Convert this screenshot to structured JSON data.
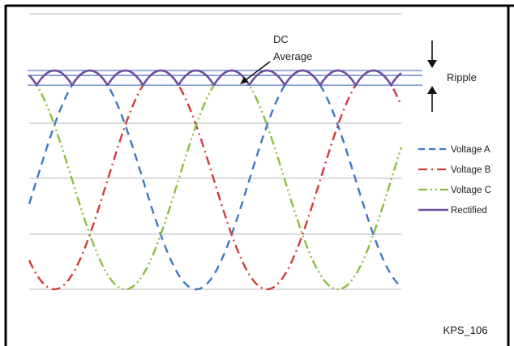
{
  "figure_id": "KPS_106",
  "chart_data": {
    "type": "line",
    "title": "",
    "xlabel": "",
    "ylabel": "",
    "grid": true,
    "legend_position": "right",
    "cycles_shown": 1.75,
    "series": [
      {
        "name": "Voltage A",
        "color": "#3f78c4",
        "style": "dashed",
        "phase_deg": 0
      },
      {
        "name": "Voltage B",
        "color": "#cf3d39",
        "style": "dash-dot",
        "phase_deg": 120
      },
      {
        "name": "Voltage C",
        "color": "#8cbd3f",
        "style": "dash-dot-dot",
        "phase_deg": 240
      },
      {
        "name": "Rectified",
        "color": "#6f4ea3",
        "style": "solid",
        "definition": "max(|A|, |B|, |C|)"
      }
    ],
    "annotations": [
      {
        "id": "dc_average",
        "lines": [
          "DC",
          "Average"
        ],
        "value": 0.955
      },
      {
        "id": "ripple",
        "text": "Ripple",
        "top_value": 1.0,
        "bottom_value": 0.866
      }
    ],
    "reference_lines": [
      1.0,
      0.955,
      0.866
    ]
  },
  "colors": {
    "frame": "#000000",
    "gridline": "#c8c8c8",
    "reference_line": "#5b7fc7",
    "text": "#222222"
  }
}
